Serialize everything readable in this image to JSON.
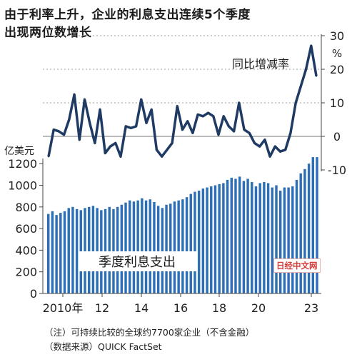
{
  "title": {
    "line1": "由于利率上升，企业的利息支出连续5个季度",
    "line2": "出现两位数增长"
  },
  "notes": {
    "note1": "（注）可持续比较的全球约7700家企业（不含金融）",
    "note2": "（数据来源）QUICK FactSet"
  },
  "watermark": "日经中文网",
  "chart_data": {
    "type": "bar+line",
    "x_tick_labels": [
      "2010年",
      "12",
      "14",
      "16",
      "18",
      "20",
      "23"
    ],
    "bar_series": {
      "name": "季度利息支出",
      "unit": "亿美元",
      "ylim": [
        0,
        1300
      ],
      "yticks": [
        0,
        200,
        400,
        600,
        800,
        1000,
        1200
      ],
      "values": [
        735,
        760,
        725,
        745,
        760,
        790,
        800,
        780,
        770,
        790,
        800,
        810,
        790,
        770,
        780,
        800,
        780,
        800,
        820,
        840,
        860,
        850,
        860,
        880,
        860,
        870,
        845,
        810,
        790,
        820,
        830,
        850,
        860,
        870,
        890,
        920,
        940,
        950,
        970,
        980,
        990,
        1000,
        1010,
        1020,
        1050,
        1070,
        1060,
        1080,
        1040,
        1060,
        1030,
        990,
        1020,
        1030,
        1020,
        980,
        1000,
        950,
        980,
        980,
        990,
        1050,
        1110,
        1150,
        1200,
        1260,
        1260
      ]
    },
    "line_series": {
      "name": "同比增减率",
      "unit": "%",
      "ylim": [
        -10,
        30
      ],
      "yticks": [
        -10,
        0,
        10,
        20,
        30
      ],
      "values": [
        -6,
        2,
        1.5,
        0.5,
        5,
        12.5,
        -1,
        11,
        4,
        -2,
        8,
        -5,
        -3,
        -2,
        -6,
        3,
        2.5,
        3,
        11,
        4,
        8,
        -4,
        -6,
        -4,
        -2,
        9,
        2,
        4.5,
        1,
        6.5,
        6,
        7,
        6,
        0.5,
        6,
        3,
        1.5,
        10,
        2,
        1,
        -2,
        -3,
        -1,
        -6,
        -3,
        -4.5,
        -4,
        1,
        10,
        15,
        20,
        27,
        18
      ]
    }
  }
}
